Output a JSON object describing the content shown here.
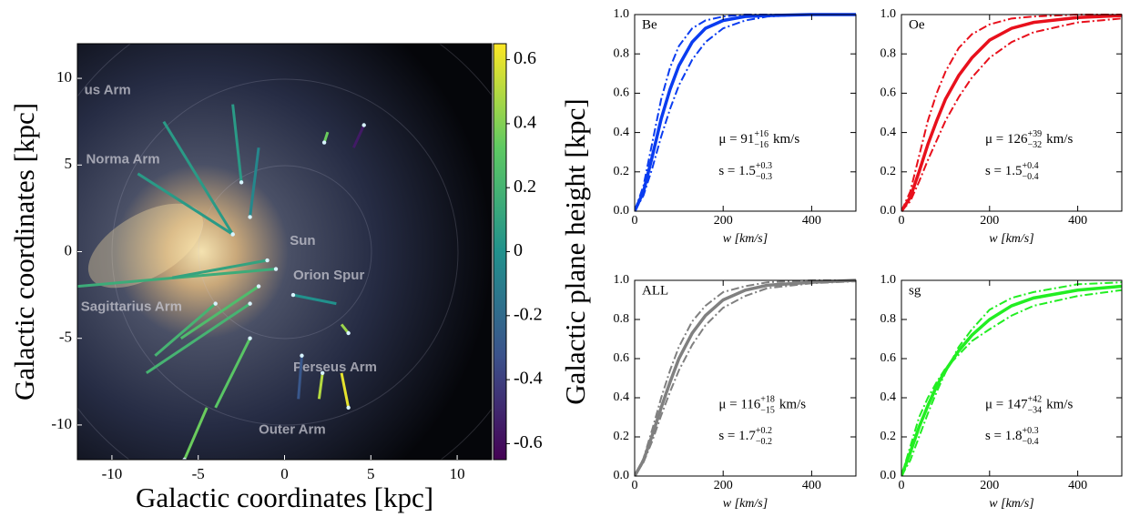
{
  "chart_data": [
    {
      "type": "scatter",
      "xlabel": "Galactic coordinates [kpc]",
      "ylabel": "Galactic coordinates [kpc]",
      "xlim": [
        -12,
        12
      ],
      "ylim": [
        -12,
        12
      ],
      "xticks": [
        -10,
        -5,
        0,
        5,
        10
      ],
      "yticks": [
        -10,
        -5,
        0,
        5,
        10
      ],
      "colorbar": {
        "label": "Galactic plane height [kpc]",
        "lim": [
          -0.65,
          0.65
        ],
        "ticks": [
          0.6,
          0.4,
          0.2,
          0,
          -0.2,
          -0.4,
          -0.6
        ],
        "colormap": "viridis"
      },
      "annotations": [
        {
          "text": "us Arm",
          "x": -11.6,
          "y": 9.3
        },
        {
          "text": "Norma Arm",
          "x": -11.5,
          "y": 5.3
        },
        {
          "text": "Sagittarius Arm",
          "x": -11.8,
          "y": -3.2
        },
        {
          "text": "Sun",
          "x": 0.3,
          "y": 0.6
        },
        {
          "text": "Orion Spur",
          "x": 0.5,
          "y": -1.4
        },
        {
          "text": "Perseus Arm",
          "x": 0.5,
          "y": -6.7
        },
        {
          "text": "Outer Arm",
          "x": -1.5,
          "y": -10.3
        }
      ],
      "points": {
        "x": [
          -0.5,
          -3.0,
          4.6,
          2.3,
          3.7,
          2.2,
          -5.8,
          -1.5,
          -2.0,
          -3.0,
          -1.0,
          -2.0,
          3.7,
          -2.0,
          -2.5,
          1.0,
          0.5,
          -4.0
        ],
        "y": [
          -1.0,
          1.0,
          7.3,
          6.3,
          -9.0,
          -7.0,
          -12.0,
          -2.0,
          -3.0,
          1.0,
          -0.5,
          -5.0,
          -4.7,
          2.0,
          4.0,
          -6.0,
          -2.5,
          -3.0
        ],
        "x2": [
          -12.0,
          -7.0,
          4.0,
          2.5,
          3.3,
          2.0,
          -4.5,
          -6.0,
          -8.0,
          -8.5,
          -6.5,
          -4.0,
          3.3,
          -1.5,
          -3.0,
          0.8,
          3.0,
          -7.5
        ],
        "y2": [
          -2.0,
          7.5,
          6.0,
          6.9,
          -7.0,
          -8.5,
          -9.0,
          -5.0,
          -7.0,
          4.5,
          -1.5,
          -9.0,
          -4.2,
          6.0,
          8.5,
          -8.5,
          -3.0,
          -6.0
        ],
        "z": [
          0.15,
          0.05,
          -0.55,
          0.35,
          0.6,
          0.5,
          0.35,
          0.25,
          0.2,
          0.05,
          0.1,
          0.3,
          0.45,
          -0.05,
          0.05,
          -0.3,
          0.0,
          0.2
        ]
      }
    },
    {
      "type": "line",
      "label": "Be",
      "xlabel": "w [km/s]",
      "xlim": [
        0,
        500
      ],
      "ylim": [
        0,
        1
      ],
      "xticks": [
        0,
        200,
        400
      ],
      "yticks": [
        {
          "value": 0,
          "label": "0.0"
        },
        0.2,
        0.4,
        0.6,
        0.8,
        {
          "value": 1,
          "label": "1.0"
        }
      ],
      "x": [
        0,
        20,
        40,
        60,
        80,
        100,
        130,
        160,
        200,
        250,
        300,
        400,
        500
      ],
      "series": [
        {
          "color": "#0a3cf0",
          "style": "solid",
          "values": [
            0,
            0.1,
            0.28,
            0.47,
            0.62,
            0.74,
            0.86,
            0.93,
            0.97,
            0.99,
            0.995,
            1,
            1
          ]
        },
        {
          "color": "#0a3cf0",
          "style": "dashdot",
          "values": [
            0,
            0.13,
            0.35,
            0.57,
            0.73,
            0.84,
            0.93,
            0.97,
            0.99,
            1,
            1,
            1,
            1
          ]
        },
        {
          "color": "#0a3cf0",
          "style": "dashdot",
          "values": [
            0,
            0.08,
            0.22,
            0.38,
            0.52,
            0.64,
            0.77,
            0.86,
            0.93,
            0.97,
            0.99,
            1,
            1
          ]
        }
      ],
      "stats": [
        {
          "main": "μ = 91",
          "upper": "+16",
          "lower": "−16",
          "unit": "km/s"
        },
        {
          "main": "s = 1.5",
          "upper": "+0.3",
          "lower": "−0.3"
        }
      ]
    },
    {
      "type": "line",
      "label": "Oe",
      "xlabel": "w [km/s]",
      "xlim": [
        0,
        500
      ],
      "ylim": [
        0,
        1
      ],
      "xticks": [
        0,
        200,
        400
      ],
      "yticks": [
        {
          "value": 0,
          "label": "0.0"
        },
        0.2,
        0.4,
        0.6,
        0.8,
        {
          "value": 1,
          "label": "1.0"
        }
      ],
      "x": [
        0,
        20,
        40,
        60,
        80,
        100,
        130,
        160,
        200,
        250,
        300,
        400,
        500
      ],
      "series": [
        {
          "color": "#e8101c",
          "style": "solid",
          "values": [
            0,
            0.07,
            0.2,
            0.34,
            0.46,
            0.57,
            0.69,
            0.78,
            0.87,
            0.93,
            0.96,
            0.985,
            0.995
          ]
        },
        {
          "color": "#e8101c",
          "style": "dashdot",
          "values": [
            0,
            0.1,
            0.28,
            0.46,
            0.6,
            0.71,
            0.83,
            0.9,
            0.95,
            0.98,
            0.99,
            1,
            1
          ]
        },
        {
          "color": "#e8101c",
          "style": "dashdot",
          "values": [
            0,
            0.05,
            0.15,
            0.26,
            0.36,
            0.46,
            0.58,
            0.68,
            0.78,
            0.86,
            0.91,
            0.96,
            0.98
          ]
        }
      ],
      "stats": [
        {
          "main": "μ = 126",
          "upper": "+39",
          "lower": "−32",
          "unit": "km/s"
        },
        {
          "main": "s = 1.5",
          "upper": "+0.4",
          "lower": "−0.4"
        }
      ]
    },
    {
      "type": "line",
      "label": "ALL",
      "xlabel": "w [km/s]",
      "xlim": [
        0,
        500
      ],
      "ylim": [
        0,
        1
      ],
      "xticks": [
        0,
        200,
        400
      ],
      "yticks": [
        {
          "value": 0,
          "label": "0.0"
        },
        0.2,
        0.4,
        0.6,
        0.8,
        {
          "value": 1,
          "label": "1.0"
        }
      ],
      "x": [
        0,
        20,
        40,
        60,
        80,
        100,
        130,
        160,
        200,
        250,
        300,
        400,
        500
      ],
      "series": [
        {
          "color": "#808080",
          "style": "solid",
          "values": [
            0,
            0.08,
            0.21,
            0.35,
            0.48,
            0.6,
            0.73,
            0.82,
            0.9,
            0.95,
            0.975,
            0.99,
            1
          ]
        },
        {
          "color": "#808080",
          "style": "dashdot",
          "values": [
            0,
            0.09,
            0.24,
            0.4,
            0.54,
            0.66,
            0.79,
            0.87,
            0.94,
            0.97,
            0.99,
            1,
            1
          ]
        },
        {
          "color": "#808080",
          "style": "dashdot",
          "values": [
            0,
            0.07,
            0.18,
            0.31,
            0.43,
            0.54,
            0.67,
            0.77,
            0.86,
            0.92,
            0.96,
            0.985,
            0.995
          ]
        }
      ],
      "stats": [
        {
          "main": "μ = 116",
          "upper": "+18",
          "lower": "−15",
          "unit": "km/s"
        },
        {
          "main": "s = 1.7",
          "upper": "+0.2",
          "lower": "−0.2"
        }
      ]
    },
    {
      "type": "line",
      "label": "sg",
      "xlabel": "w [km/s]",
      "xlim": [
        0,
        500
      ],
      "ylim": [
        0,
        1
      ],
      "xticks": [
        0,
        200,
        400
      ],
      "yticks": [
        {
          "value": 0,
          "label": "0.0"
        },
        0.2,
        0.4,
        0.6,
        0.8,
        {
          "value": 1,
          "label": "1.0"
        }
      ],
      "x": [
        0,
        20,
        40,
        60,
        80,
        100,
        130,
        160,
        200,
        250,
        300,
        400,
        500
      ],
      "series": [
        {
          "color": "#22ee22",
          "style": "solid",
          "values": [
            0,
            0.12,
            0.25,
            0.36,
            0.46,
            0.54,
            0.64,
            0.72,
            0.8,
            0.87,
            0.91,
            0.95,
            0.97
          ]
        },
        {
          "color": "#22ee22",
          "style": "dashdot",
          "values": [
            0,
            0.08,
            0.2,
            0.32,
            0.43,
            0.53,
            0.66,
            0.75,
            0.85,
            0.91,
            0.94,
            0.98,
            0.99
          ]
        },
        {
          "color": "#22ee22",
          "style": "dashdot",
          "values": [
            0,
            0.15,
            0.3,
            0.4,
            0.48,
            0.55,
            0.62,
            0.69,
            0.75,
            0.82,
            0.87,
            0.92,
            0.95
          ]
        }
      ],
      "stats": [
        {
          "main": "μ = 147",
          "upper": "+42",
          "lower": "−34",
          "unit": "km/s"
        },
        {
          "main": "s = 1.8",
          "upper": "+0.3",
          "lower": "−0.4"
        }
      ]
    }
  ]
}
